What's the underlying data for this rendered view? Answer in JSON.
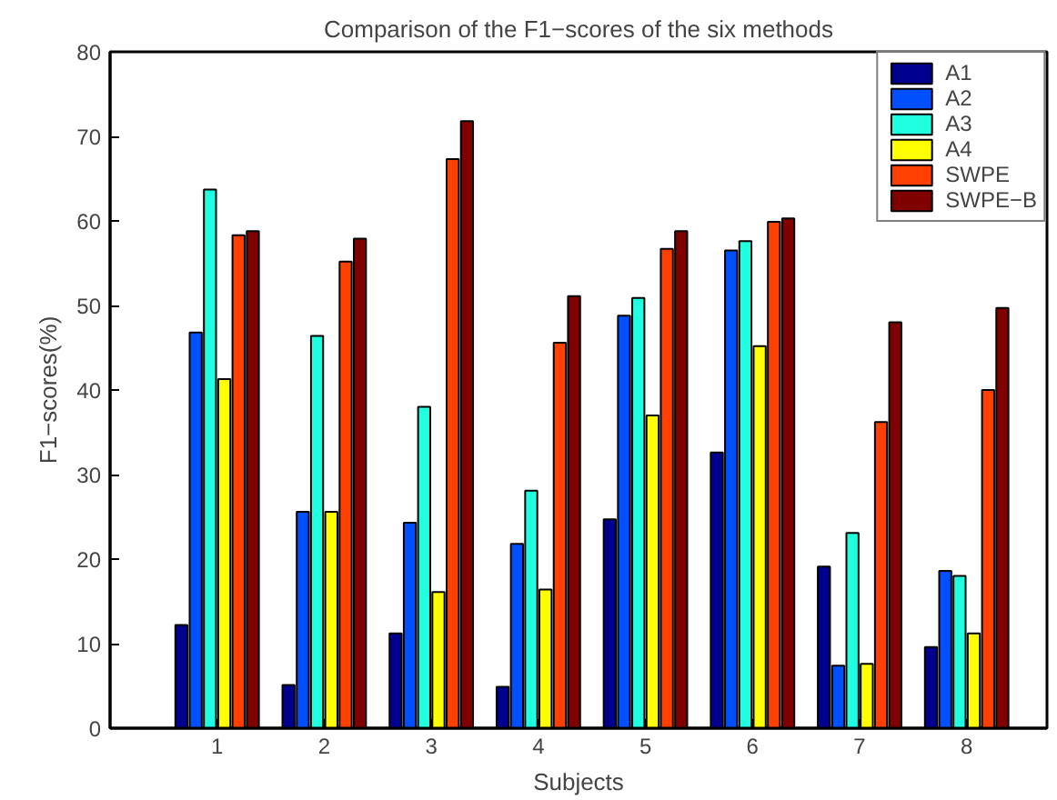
{
  "chart_data": {
    "type": "bar",
    "title": "Comparison of the F1−scores of the six methods",
    "xlabel": "Subjects",
    "ylabel": "F1−scores(%)",
    "categories": [
      "1",
      "2",
      "3",
      "4",
      "5",
      "6",
      "7",
      "8"
    ],
    "series": [
      {
        "name": "A1",
        "color": "#00008f",
        "values": [
          12.2,
          5.1,
          11.2,
          4.9,
          24.7,
          32.6,
          19.1,
          9.6
        ]
      },
      {
        "name": "A2",
        "color": "#0050ff",
        "values": [
          46.8,
          25.6,
          24.3,
          21.8,
          48.8,
          56.5,
          7.4,
          18.6
        ]
      },
      {
        "name": "A3",
        "color": "#20ffdf",
        "values": [
          63.7,
          46.4,
          38,
          28.1,
          50.9,
          57.6,
          23.1,
          18
        ]
      },
      {
        "name": "A4",
        "color": "#ffff00",
        "values": [
          41.3,
          25.6,
          16.1,
          16.4,
          37,
          45.2,
          7.6,
          11.2
        ]
      },
      {
        "name": "SWPE",
        "color": "#ff4000",
        "values": [
          58.3,
          55.2,
          67.3,
          45.6,
          56.7,
          59.9,
          36.2,
          40
        ]
      },
      {
        "name": "SWPE−B",
        "color": "#800000",
        "values": [
          58.8,
          57.9,
          71.8,
          51.1,
          58.8,
          60.3,
          48,
          49.7
        ]
      }
    ],
    "ylim": [
      0,
      80
    ],
    "yticks": [
      0,
      10,
      20,
      30,
      40,
      50,
      60,
      70,
      80
    ],
    "grid": false,
    "legend": "top right"
  }
}
